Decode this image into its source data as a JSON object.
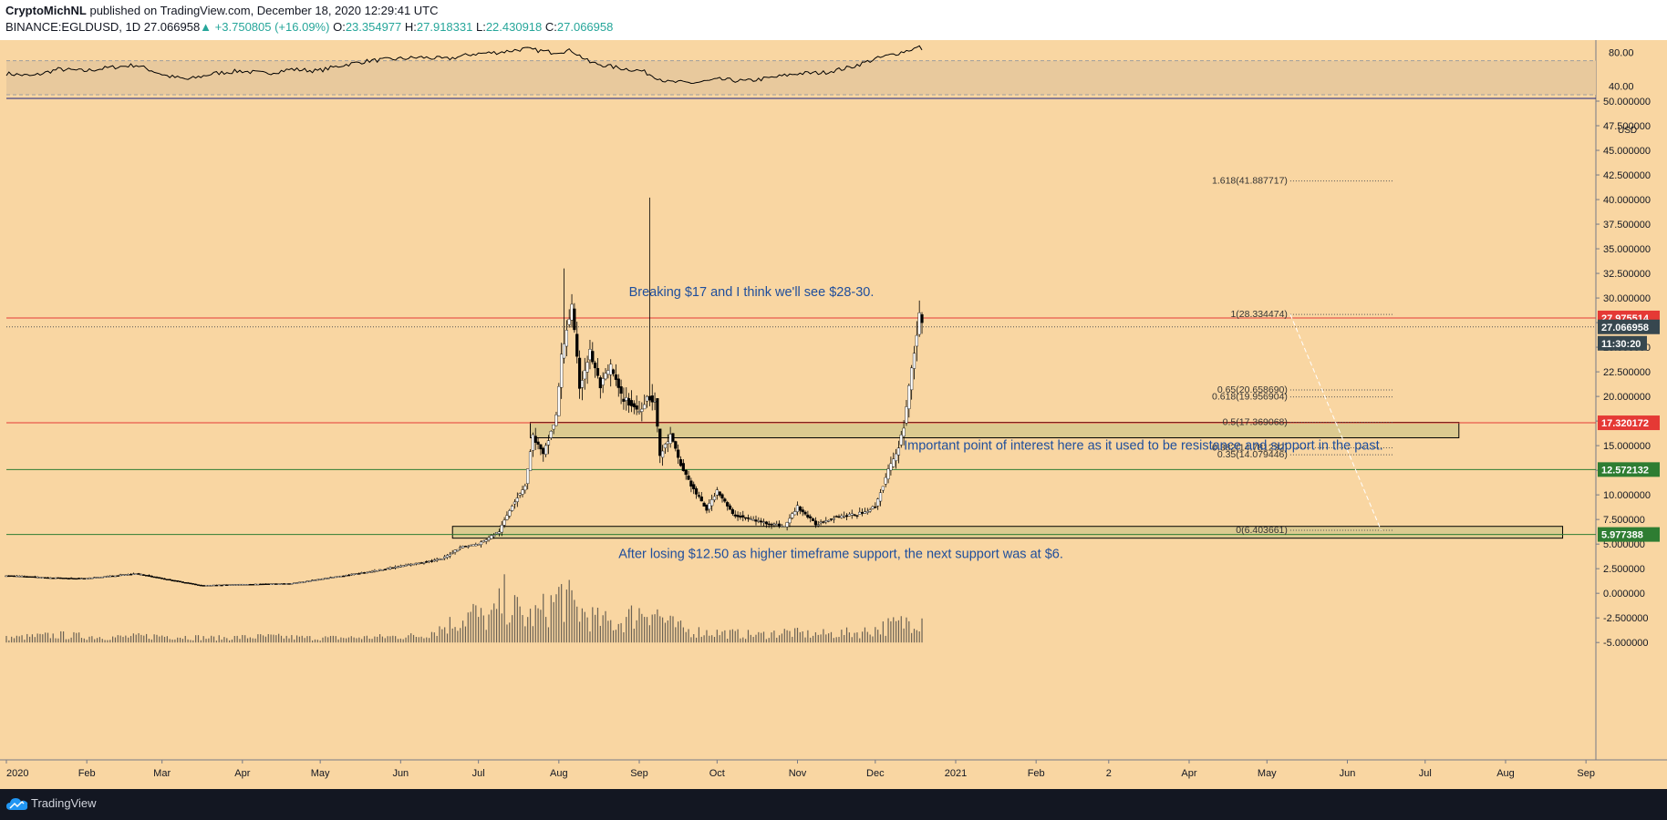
{
  "header": {
    "author": "CryptoMichNL",
    "published": "published on TradingView.com, December 18, 2020 12:29:41 UTC",
    "symbol": "BINANCE:EGLDUSD, 1D",
    "last": "27.066958",
    "change_arrow": "▲",
    "change": "+3.750805 (+16.09%)",
    "o_label": "O:",
    "o_value": "23.354977",
    "h_label": "H:",
    "h_value": "27.918331",
    "l_label": "L:",
    "l_value": "22.430918",
    "c_label": "C:",
    "c_value": "27.066958"
  },
  "footer": {
    "brand": "TradingView",
    "icon": "tradingview-cloud-icon"
  },
  "colors": {
    "background": "#f9d6a2",
    "rsi_band": "#e8c99d",
    "candle_up": "#ffffff",
    "candle_down": "#000000",
    "resistance_line": "#e53935",
    "support_line": "#2e7d32",
    "zone_fill": "#d1c68a",
    "annotation_text": "#1f4e9c",
    "badge_red": "#e53935",
    "badge_green": "#2e7d32",
    "badge_dark": "#37474f"
  },
  "annotations": [
    "Breaking $17 and I think we'll see $28-30.",
    "Important point of interest here as it used to be resistance and support in the past.",
    "After losing $12.50 as higher timeframe support, the next support was at $6."
  ],
  "chart_data": {
    "type": "candlestick",
    "symbol": "BINANCE:EGLDUSD",
    "timeframe": "1D",
    "y_axis": {
      "unit": "USD",
      "range": [
        -6.0,
        50.0
      ],
      "tick_values": [
        50.0,
        47.5,
        45.0,
        42.5,
        40.0,
        37.5,
        35.0,
        32.5,
        30.0,
        27.5,
        25.0,
        22.5,
        20.0,
        17.5,
        15.0,
        12.5,
        10.0,
        7.5,
        5.0,
        2.5,
        0.0,
        -2.5,
        -5.0
      ],
      "tick_labels": [
        "50.000000",
        "47.500000",
        "45.000000",
        "42.500000",
        "40.000000",
        "37.500000",
        "35.000000",
        "32.500000",
        "30.000000",
        "27.500000",
        "25.000000",
        "22.500000",
        "20.000000",
        "17.500000",
        "15.000000",
        "12.500000",
        "10.000000",
        "7.500000",
        "5.000000",
        "2.500000",
        "0.000000",
        "-2.500000",
        "-5.000000"
      ]
    },
    "x_axis": {
      "labels": [
        "2020",
        "Feb",
        "Mar",
        "Apr",
        "May",
        "Jun",
        "Jul",
        "Aug",
        "Sep",
        "Oct",
        "Nov",
        "Dec",
        "2021",
        "Feb",
        "2",
        "Apr",
        "May",
        "Jun",
        "Jul",
        "Aug",
        "Sep"
      ],
      "label_days": [
        0,
        31,
        60,
        91,
        121,
        152,
        182,
        213,
        244,
        274,
        305,
        335,
        366,
        397,
        425,
        456,
        486,
        517,
        547,
        578,
        609
      ],
      "range_days": [
        0,
        610
      ]
    },
    "price_path": [
      [
        0,
        1.8
      ],
      [
        15,
        1.6
      ],
      [
        30,
        1.5
      ],
      [
        50,
        2.0
      ],
      [
        62,
        1.4
      ],
      [
        75,
        0.8
      ],
      [
        90,
        0.9
      ],
      [
        110,
        1.0
      ],
      [
        125,
        1.6
      ],
      [
        140,
        2.2
      ],
      [
        155,
        2.9
      ],
      [
        168,
        3.5
      ],
      [
        175,
        4.7
      ],
      [
        182,
        5.0
      ],
      [
        190,
        6.3
      ],
      [
        195,
        9.0
      ],
      [
        200,
        11.0
      ],
      [
        203,
        16.0
      ],
      [
        207,
        14.0
      ],
      [
        212,
        18.0
      ],
      [
        214,
        24.0
      ],
      [
        216,
        27.0
      ],
      [
        218,
        29.0
      ],
      [
        221,
        21.0
      ],
      [
        225,
        24.5
      ],
      [
        229,
        21.0
      ],
      [
        233,
        23.0
      ],
      [
        237,
        20.0
      ],
      [
        244,
        18.5
      ],
      [
        247,
        20.0
      ],
      [
        250,
        19.5
      ],
      [
        252,
        14.0
      ],
      [
        256,
        16.0
      ],
      [
        260,
        13.0
      ],
      [
        265,
        10.5
      ],
      [
        270,
        8.5
      ],
      [
        274,
        10.5
      ],
      [
        280,
        8.0
      ],
      [
        290,
        7.3
      ],
      [
        300,
        6.8
      ],
      [
        305,
        8.8
      ],
      [
        312,
        7.0
      ],
      [
        320,
        7.8
      ],
      [
        328,
        8.0
      ],
      [
        335,
        8.8
      ],
      [
        340,
        12.5
      ],
      [
        343,
        14.0
      ],
      [
        346,
        17.0
      ],
      [
        349,
        23.0
      ],
      [
        352,
        28.0
      ],
      [
        353,
        27.07
      ]
    ],
    "spike": {
      "day": 248,
      "high": 40.2,
      "low": 19.0
    },
    "wick_high": {
      "day": 215,
      "high": 33.0
    },
    "current_price": 27.066958,
    "horizontal_levels": [
      {
        "price": 27.975514,
        "label": "27.975514",
        "type": "resistance"
      },
      {
        "price": 17.320172,
        "label": "17.320172",
        "type": "resistance"
      },
      {
        "price": 12.572132,
        "label": "12.572132",
        "type": "support"
      },
      {
        "price": 5.977388,
        "label": "5.977388",
        "type": "support"
      }
    ],
    "current_price_badge": {
      "price": 27.066958,
      "label": "27.066958",
      "countdown": "11:30:20"
    },
    "zones": [
      {
        "top": 17.369068,
        "bottom": 15.8,
        "start_day": 202,
        "end_day": 560
      },
      {
        "top": 6.8,
        "bottom": 5.6,
        "start_day": 172,
        "end_day": 600
      }
    ],
    "fib_levels": [
      {
        "ratio": "1.618",
        "price": 41.887717,
        "label": "1.618(41.887717)"
      },
      {
        "ratio": "1",
        "price": 28.334474,
        "label": "1(28.334474)"
      },
      {
        "ratio": "0.65",
        "price": 20.65869,
        "label": "0.65(20.658690)"
      },
      {
        "ratio": "0.618",
        "price": 19.956904,
        "label": "0.618(19.956904)"
      },
      {
        "ratio": "0.5",
        "price": 17.369068,
        "label": "0.5(17.369068)"
      },
      {
        "ratio": "0.382",
        "price": 14.781232,
        "label": "0.382(14.781232)"
      },
      {
        "ratio": "0.35",
        "price": 14.079446,
        "label": "0.35(14.079446)"
      },
      {
        "ratio": "0",
        "price": 6.403661,
        "label": "0(6.403661)"
      }
    ],
    "fib_day_range": [
      495,
      535
    ],
    "fib_trend_line": {
      "from": [
        495,
        28.334474
      ],
      "to": [
        530,
        6.403661
      ]
    },
    "rsi": {
      "axis_labels": [
        "80.00",
        "40.00"
      ],
      "tick_values": [
        80,
        40
      ],
      "range": [
        30,
        90
      ],
      "upper_band": 70,
      "lower_band": 30,
      "path": [
        [
          0,
          55
        ],
        [
          10,
          52
        ],
        [
          20,
          60
        ],
        [
          30,
          58
        ],
        [
          40,
          62
        ],
        [
          50,
          65
        ],
        [
          62,
          52
        ],
        [
          70,
          48
        ],
        [
          80,
          55
        ],
        [
          90,
          58
        ],
        [
          100,
          55
        ],
        [
          110,
          60
        ],
        [
          120,
          58
        ],
        [
          130,
          65
        ],
        [
          140,
          70
        ],
        [
          150,
          72
        ],
        [
          160,
          74
        ],
        [
          170,
          72
        ],
        [
          180,
          78
        ],
        [
          190,
          80
        ],
        [
          200,
          84
        ],
        [
          210,
          80
        ],
        [
          218,
          82
        ],
        [
          225,
          68
        ],
        [
          235,
          62
        ],
        [
          245,
          58
        ],
        [
          255,
          45
        ],
        [
          265,
          44
        ],
        [
          275,
          48
        ],
        [
          285,
          46
        ],
        [
          295,
          50
        ],
        [
          305,
          55
        ],
        [
          315,
          56
        ],
        [
          325,
          62
        ],
        [
          335,
          72
        ],
        [
          345,
          80
        ],
        [
          352,
          86
        ],
        [
          353,
          84
        ]
      ]
    },
    "volume": {
      "baseline": -5.0,
      "bars": [
        [
          0,
          0.6
        ],
        [
          20,
          1.0
        ],
        [
          40,
          0.7
        ],
        [
          60,
          0.9
        ],
        [
          80,
          0.6
        ],
        [
          100,
          0.8
        ],
        [
          120,
          0.6
        ],
        [
          140,
          0.7
        ],
        [
          160,
          0.9
        ],
        [
          172,
          2.6
        ],
        [
          176,
          3.2
        ],
        [
          180,
          4.0
        ],
        [
          184,
          3.0
        ],
        [
          188,
          3.6
        ],
        [
          192,
          5.8
        ],
        [
          196,
          4.5
        ],
        [
          200,
          3.2
        ],
        [
          205,
          3.8
        ],
        [
          210,
          5.0
        ],
        [
          214,
          6.5
        ],
        [
          218,
          5.0
        ],
        [
          222,
          4.0
        ],
        [
          228,
          3.0
        ],
        [
          235,
          2.5
        ],
        [
          248,
          4.8
        ],
        [
          255,
          2.6
        ],
        [
          262,
          1.6
        ],
        [
          270,
          1.4
        ],
        [
          280,
          1.2
        ],
        [
          290,
          1.0
        ],
        [
          300,
          1.4
        ],
        [
          310,
          1.1
        ],
        [
          320,
          1.2
        ],
        [
          330,
          1.4
        ],
        [
          340,
          2.2
        ],
        [
          346,
          2.6
        ],
        [
          350,
          3.4
        ],
        [
          352,
          3.2
        ]
      ]
    }
  }
}
